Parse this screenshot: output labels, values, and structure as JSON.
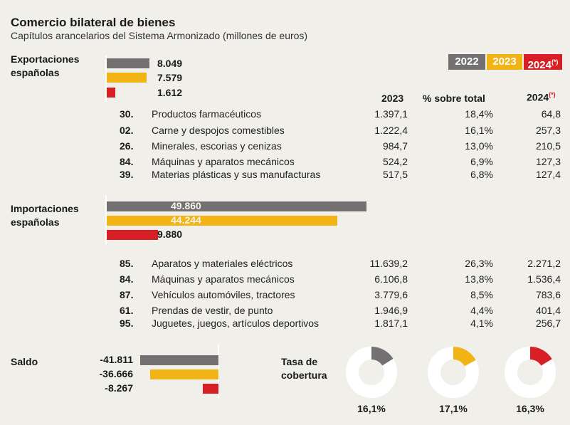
{
  "title": "Comercio bilateral de bienes",
  "subtitle": "Capítulos arancelarios del Sistema Armonizado (millones de euros)",
  "colors": {
    "y2022": "#727071",
    "y2023": "#f2b315",
    "y2024": "#d81f26",
    "background": "#f0efe9"
  },
  "legend": [
    {
      "label": "2022",
      "mark": ""
    },
    {
      "label": "2023",
      "mark": ""
    },
    {
      "label": "2024",
      "mark": "(*)"
    }
  ],
  "table_headers": {
    "col1": "2023",
    "col2": "% sobre total",
    "col3": "2024",
    "col3_mark": "(*)"
  },
  "exportaciones": {
    "label_line1": "Exportaciones",
    "label_line2": "españolas",
    "rows": [
      {
        "code": "30.",
        "name": "Productos farmacéuticos",
        "v2023": "1.397,1",
        "pct": "18,4%",
        "v2024": "64,8"
      },
      {
        "code": "02.",
        "name": "Carne y despojos comestibles",
        "v2023": "1.222,4",
        "pct": "16,1%",
        "v2024": "257,3"
      },
      {
        "code": "26.",
        "name": "Minerales, escorias y cenizas",
        "v2023": "984,7",
        "pct": "13,0%",
        "v2024": "210,5"
      },
      {
        "code": "84.",
        "name": "Máquinas y aparatos mecánicos",
        "v2023": "524,2",
        "pct": "6,9%",
        "v2024": "127,3"
      },
      {
        "code": "39.",
        "name": "Materias plásticas y sus manufacturas",
        "v2023": "517,5",
        "pct": "6,8%",
        "v2024": "127,4"
      }
    ]
  },
  "importaciones": {
    "label_line1": "Importaciones",
    "label_line2": "españolas",
    "rows": [
      {
        "code": "85.",
        "name": "Aparatos y materiales eléctricos",
        "v2023": "11.639,2",
        "pct": "26,3%",
        "v2024": "2.271,2"
      },
      {
        "code": "84.",
        "name": "Máquinas y aparatos mecánicos",
        "v2023": "6.106,8",
        "pct": "13,8%",
        "v2024": "1.536,4"
      },
      {
        "code": "87.",
        "name": "Vehículos automóviles, tractores",
        "v2023": "3.779,6",
        "pct": "8,5%",
        "v2024": "783,6"
      },
      {
        "code": "61.",
        "name": "Prendas de vestir, de punto",
        "v2023": "1.946,9",
        "pct": "4,4%",
        "v2024": "401,4"
      },
      {
        "code": "95.",
        "name": "Juguetes, juegos, artículos deportivos",
        "v2023": "1.817,1",
        "pct": "4,1%",
        "v2024": "256,7"
      }
    ]
  },
  "saldo": {
    "label": "Saldo"
  },
  "tasa": {
    "label_line1": "Tasa de",
    "label_line2": "cobertura"
  },
  "chart_data": [
    {
      "type": "bar",
      "orientation": "horizontal",
      "title": "Exportaciones españolas",
      "categories": [
        "2022",
        "2023",
        "2024"
      ],
      "values": [
        8049,
        7579,
        1612
      ],
      "labels": [
        "8.049",
        "7.579",
        "1.612"
      ]
    },
    {
      "type": "bar",
      "orientation": "horizontal",
      "title": "Importaciones españolas",
      "categories": [
        "2022",
        "2023",
        "2024"
      ],
      "values": [
        49860,
        44244,
        9880
      ],
      "labels": [
        "49.860",
        "44.244",
        "9.880"
      ]
    },
    {
      "type": "bar",
      "orientation": "horizontal",
      "title": "Saldo",
      "categories": [
        "2022",
        "2023",
        "2024"
      ],
      "values": [
        -41811,
        -36666,
        -8267
      ],
      "labels": [
        "-41.811",
        "-36.666",
        "-8.267"
      ]
    },
    {
      "type": "pie",
      "title": "Tasa de cobertura",
      "categories": [
        "2022",
        "2023",
        "2024"
      ],
      "values": [
        16.1,
        17.1,
        16.3
      ],
      "labels": [
        "16,1%",
        "17,1%",
        "16,3%"
      ]
    }
  ]
}
